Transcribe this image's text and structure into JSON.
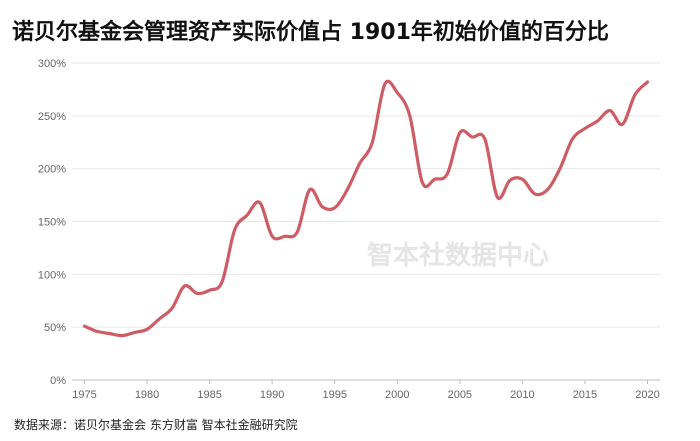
{
  "title": "诺贝尔基金会管理资产实际价值占 1901年初始价值的百分比",
  "watermark": "智本社数据中心",
  "source": "数据来源：诺贝尔基金会  东方财富  智本社金融研究院",
  "chart_data": {
    "type": "line",
    "title": "诺贝尔基金会管理资产实际价值占 1901年初始价值的百分比",
    "xlabel": "",
    "ylabel": "",
    "xlim": [
      1974,
      2021
    ],
    "ylim": [
      0,
      300
    ],
    "x_ticks": [
      1975,
      1980,
      1985,
      1990,
      1995,
      2000,
      2005,
      2010,
      2015,
      2020
    ],
    "y_ticks": [
      0,
      50,
      100,
      150,
      200,
      250,
      300
    ],
    "y_tick_labels": [
      "0%",
      "50%",
      "100%",
      "150%",
      "200%",
      "250%",
      "300%"
    ],
    "grid": "horizontal",
    "line_color": "#cd5c64",
    "series": [
      {
        "x": [
          1975,
          1976,
          1977,
          1978,
          1979,
          1980,
          1981,
          1982,
          1983,
          1984,
          1985,
          1986,
          1987,
          1988,
          1989,
          1990,
          1991,
          1992,
          1993,
          1994,
          1995,
          1996,
          1997,
          1998,
          1999,
          2000,
          2001,
          2002,
          2003,
          2004,
          2005,
          2006,
          2007,
          2008,
          2009,
          2010,
          2011,
          2012,
          2013,
          2014,
          2015,
          2016,
          2017,
          2018,
          2019,
          2020
        ],
        "values": [
          51,
          46,
          44,
          42,
          45,
          48,
          58,
          68,
          89,
          82,
          85,
          93,
          142,
          156,
          168,
          136,
          136,
          140,
          180,
          164,
          163,
          180,
          205,
          225,
          280,
          272,
          250,
          187,
          190,
          195,
          234,
          230,
          228,
          173,
          189,
          190,
          176,
          180,
          200,
          228,
          238,
          245,
          255,
          242,
          270,
          282
        ]
      }
    ]
  }
}
